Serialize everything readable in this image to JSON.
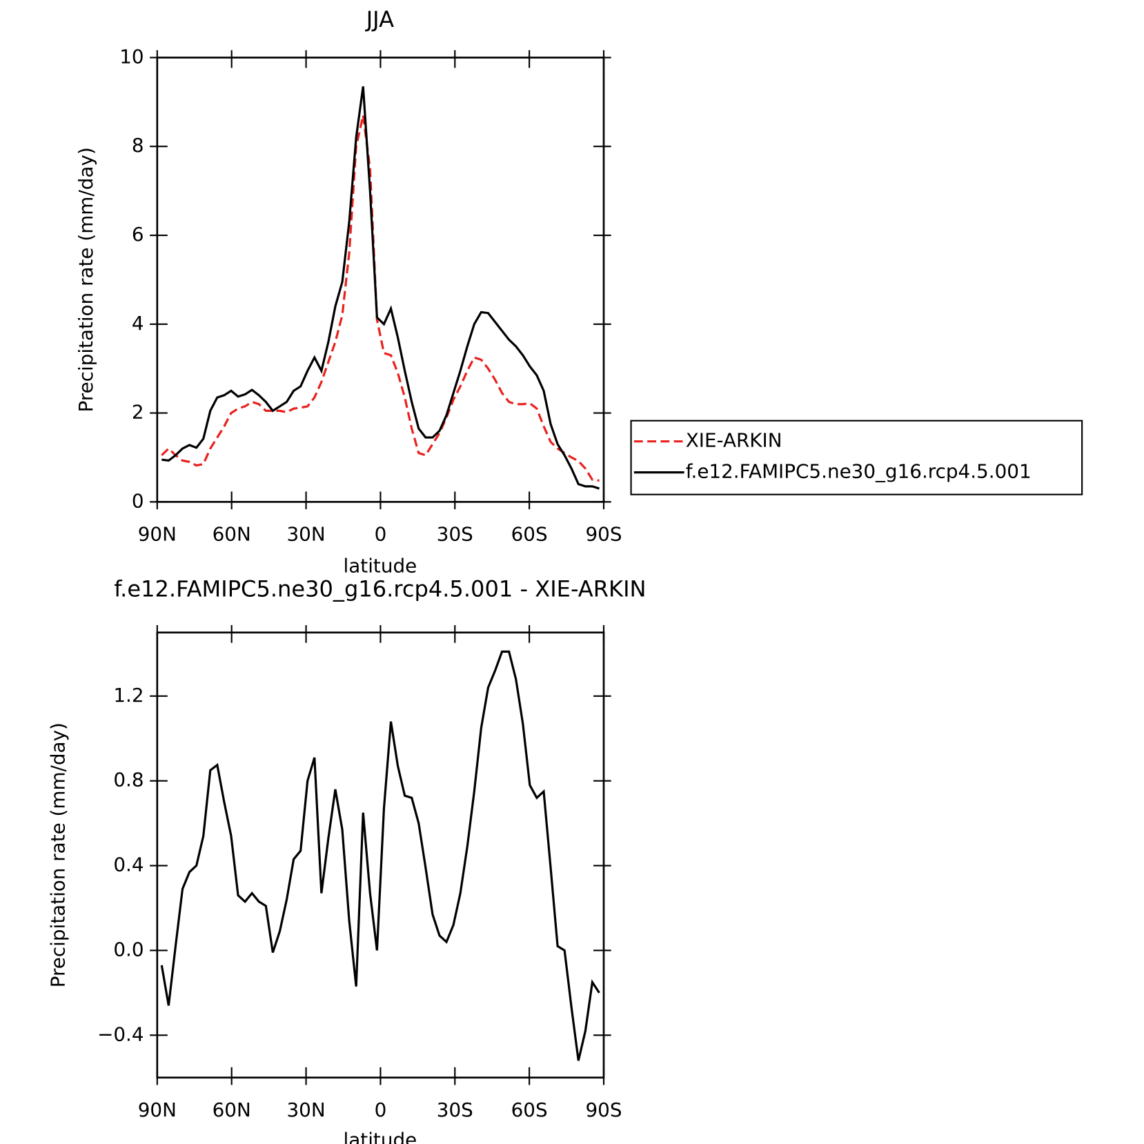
{
  "chart_data": [
    {
      "type": "line",
      "title": "JJA",
      "xlabel": "latitude",
      "ylabel": "Precipitation rate (mm/day)",
      "x": [
        88.2,
        85.4,
        82.6,
        79.8,
        77.0,
        74.2,
        71.4,
        68.6,
        65.8,
        63.0,
        60.2,
        57.4,
        54.6,
        51.8,
        49.0,
        46.2,
        43.4,
        40.6,
        37.8,
        35.0,
        32.2,
        29.4,
        26.6,
        23.8,
        21.0,
        18.2,
        15.4,
        12.6,
        9.8,
        7.0,
        4.2,
        1.4,
        -1.4,
        -4.2,
        -7.0,
        -9.8,
        -12.6,
        -15.4,
        -18.2,
        -21.0,
        -23.8,
        -26.6,
        -29.4,
        -32.2,
        -35.0,
        -37.8,
        -40.6,
        -43.4,
        -46.2,
        -49.0,
        -51.8,
        -54.6,
        -57.4,
        -60.2,
        -63.0,
        -65.8,
        -68.6,
        -71.4,
        -74.2,
        -77.0,
        -79.8,
        -82.6,
        -85.4,
        -88.2
      ],
      "series": [
        {
          "name": "XIE-ARKIN",
          "color": "#e8221e",
          "linestyle": "dashed",
          "values": [
            1.05,
            1.2,
            1.05,
            0.93,
            0.9,
            0.82,
            0.85,
            1.2,
            1.45,
            1.7,
            2.0,
            2.1,
            2.15,
            2.25,
            2.2,
            2.05,
            2.05,
            2.05,
            2.02,
            2.1,
            2.12,
            2.15,
            2.35,
            2.7,
            3.15,
            3.6,
            4.2,
            5.6,
            8.0,
            8.7,
            7.5,
            4.1,
            3.35,
            3.3,
            2.9,
            2.35,
            1.65,
            1.1,
            1.05,
            1.3,
            1.55,
            1.9,
            2.3,
            2.6,
            2.95,
            3.25,
            3.2,
            3.0,
            2.75,
            2.45,
            2.25,
            2.2,
            2.2,
            2.22,
            2.1,
            1.7,
            1.35,
            1.2,
            1.1,
            1.0,
            0.92,
            0.75,
            0.5,
            0.48
          ]
        },
        {
          "name": "f.e12.FAMIPC5.ne30_g16.rcp4.5.001",
          "color": "#000000",
          "linestyle": "solid",
          "values": [
            0.95,
            0.93,
            1.05,
            1.2,
            1.28,
            1.22,
            1.42,
            2.05,
            2.35,
            2.4,
            2.5,
            2.37,
            2.42,
            2.52,
            2.4,
            2.25,
            2.05,
            2.15,
            2.25,
            2.5,
            2.6,
            2.95,
            3.25,
            2.95,
            3.6,
            4.4,
            4.95,
            6.3,
            8.2,
            9.35,
            7.0,
            4.15,
            4.0,
            4.35,
            3.7,
            2.95,
            2.25,
            1.65,
            1.45,
            1.45,
            1.6,
            1.95,
            2.45,
            2.95,
            3.5,
            4.0,
            4.27,
            4.25,
            4.05,
            3.85,
            3.65,
            3.5,
            3.3,
            3.05,
            2.85,
            2.5,
            1.75,
            1.3,
            1.05,
            0.75,
            0.4,
            0.35,
            0.35,
            0.3
          ]
        }
      ],
      "xlim": [
        90,
        -90
      ],
      "xticks": [
        {
          "value": 90,
          "label": "90N"
        },
        {
          "value": 60,
          "label": "60N"
        },
        {
          "value": 30,
          "label": "30N"
        },
        0,
        {
          "value": -30,
          "label": "30S"
        },
        {
          "value": -60,
          "label": "60S"
        },
        {
          "value": -90,
          "label": "90S"
        }
      ],
      "ylim": [
        0,
        10
      ],
      "yticks": [
        0,
        2,
        4,
        6,
        8,
        10
      ],
      "legend": "right"
    },
    {
      "type": "line",
      "title": "f.e12.FAMIPC5.ne30_g16.rcp4.5.001 - XIE-ARKIN",
      "xlabel": "latitude",
      "ylabel": "Precipitation rate (mm/day)",
      "x": [
        88.2,
        85.4,
        82.6,
        79.8,
        77.0,
        74.2,
        71.4,
        68.6,
        65.8,
        63.0,
        60.2,
        57.4,
        54.6,
        51.8,
        49.0,
        46.2,
        43.4,
        40.6,
        37.8,
        35.0,
        32.2,
        29.4,
        26.6,
        23.8,
        21.0,
        18.2,
        15.4,
        12.6,
        9.8,
        7.0,
        4.2,
        1.4,
        -1.4,
        -4.2,
        -7.0,
        -9.8,
        -12.6,
        -15.4,
        -18.2,
        -21.0,
        -23.8,
        -26.6,
        -29.4,
        -32.2,
        -35.0,
        -37.8,
        -40.6,
        -43.4,
        -46.2,
        -49.0,
        -51.8,
        -54.6,
        -57.4,
        -60.2,
        -63.0,
        -65.8,
        -68.6,
        -71.4,
        -74.2,
        -77.0,
        -79.8,
        -82.6,
        -85.4,
        -88.2
      ],
      "color": "#000000",
      "values": [
        -0.07,
        -0.26,
        0.02,
        0.29,
        0.37,
        0.4,
        0.54,
        0.85,
        0.875,
        0.7,
        0.54,
        0.26,
        0.23,
        0.27,
        0.23,
        0.21,
        -0.01,
        0.09,
        0.24,
        0.43,
        0.47,
        0.8,
        0.91,
        0.27,
        0.53,
        0.76,
        0.57,
        0.14,
        -0.17,
        0.65,
        0.27,
        0.0,
        0.67,
        1.08,
        0.87,
        0.73,
        0.72,
        0.6,
        0.39,
        0.17,
        0.07,
        0.04,
        0.12,
        0.27,
        0.49,
        0.75,
        1.05,
        1.24,
        1.32,
        1.41,
        1.41,
        1.28,
        1.07,
        0.78,
        0.72,
        0.75,
        0.39,
        0.02,
        0.0,
        -0.27,
        -0.52,
        -0.38,
        -0.15,
        -0.2
      ],
      "xlim": [
        90,
        -90
      ],
      "xticks": [
        {
          "value": 90,
          "label": "90N"
        },
        {
          "value": 60,
          "label": "60N"
        },
        {
          "value": 30,
          "label": "30N"
        },
        0,
        {
          "value": -30,
          "label": "30S"
        },
        {
          "value": -60,
          "label": "60S"
        },
        {
          "value": -90,
          "label": "90S"
        }
      ],
      "ylim": [
        -0.6,
        1.5
      ],
      "yticks": [
        {
          "value": -0.4,
          "label": "−0.4"
        },
        {
          "value": 0,
          "label": "0.0"
        },
        0.4,
        0.8,
        1.2
      ]
    }
  ]
}
